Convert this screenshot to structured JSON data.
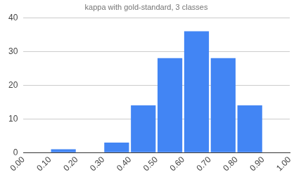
{
  "chart_data": {
    "type": "histogram",
    "title": "kappa with gold-standard, 3 classes",
    "bins": [
      0,
      0.1,
      0.2,
      0.3,
      0.4,
      0.5,
      0.6,
      0.7,
      0.8,
      0.9,
      1.0
    ],
    "values": [
      0,
      1,
      0,
      3,
      14,
      28,
      36,
      28,
      14,
      0
    ],
    "color": "#4285f4",
    "xlim": [
      0,
      1
    ],
    "xticks": [
      {
        "value": 0,
        "label": "0.00"
      },
      {
        "value": 0.1,
        "label": "0.10"
      },
      {
        "value": 0.2,
        "label": "0.20"
      },
      {
        "value": 0.3,
        "label": "0.30"
      },
      {
        "value": 0.4,
        "label": "0.40"
      },
      {
        "value": 0.5,
        "label": "0.50"
      },
      {
        "value": 0.6,
        "label": "0.60"
      },
      {
        "value": 0.7,
        "label": "0.70"
      },
      {
        "value": 0.8,
        "label": "0.80"
      },
      {
        "value": 0.9,
        "label": "0.90"
      },
      {
        "value": 1.0,
        "label": "1.00"
      }
    ],
    "ylim": [
      0,
      40
    ],
    "yticks": [
      0,
      10,
      20,
      30,
      40
    ],
    "grid": true
  }
}
